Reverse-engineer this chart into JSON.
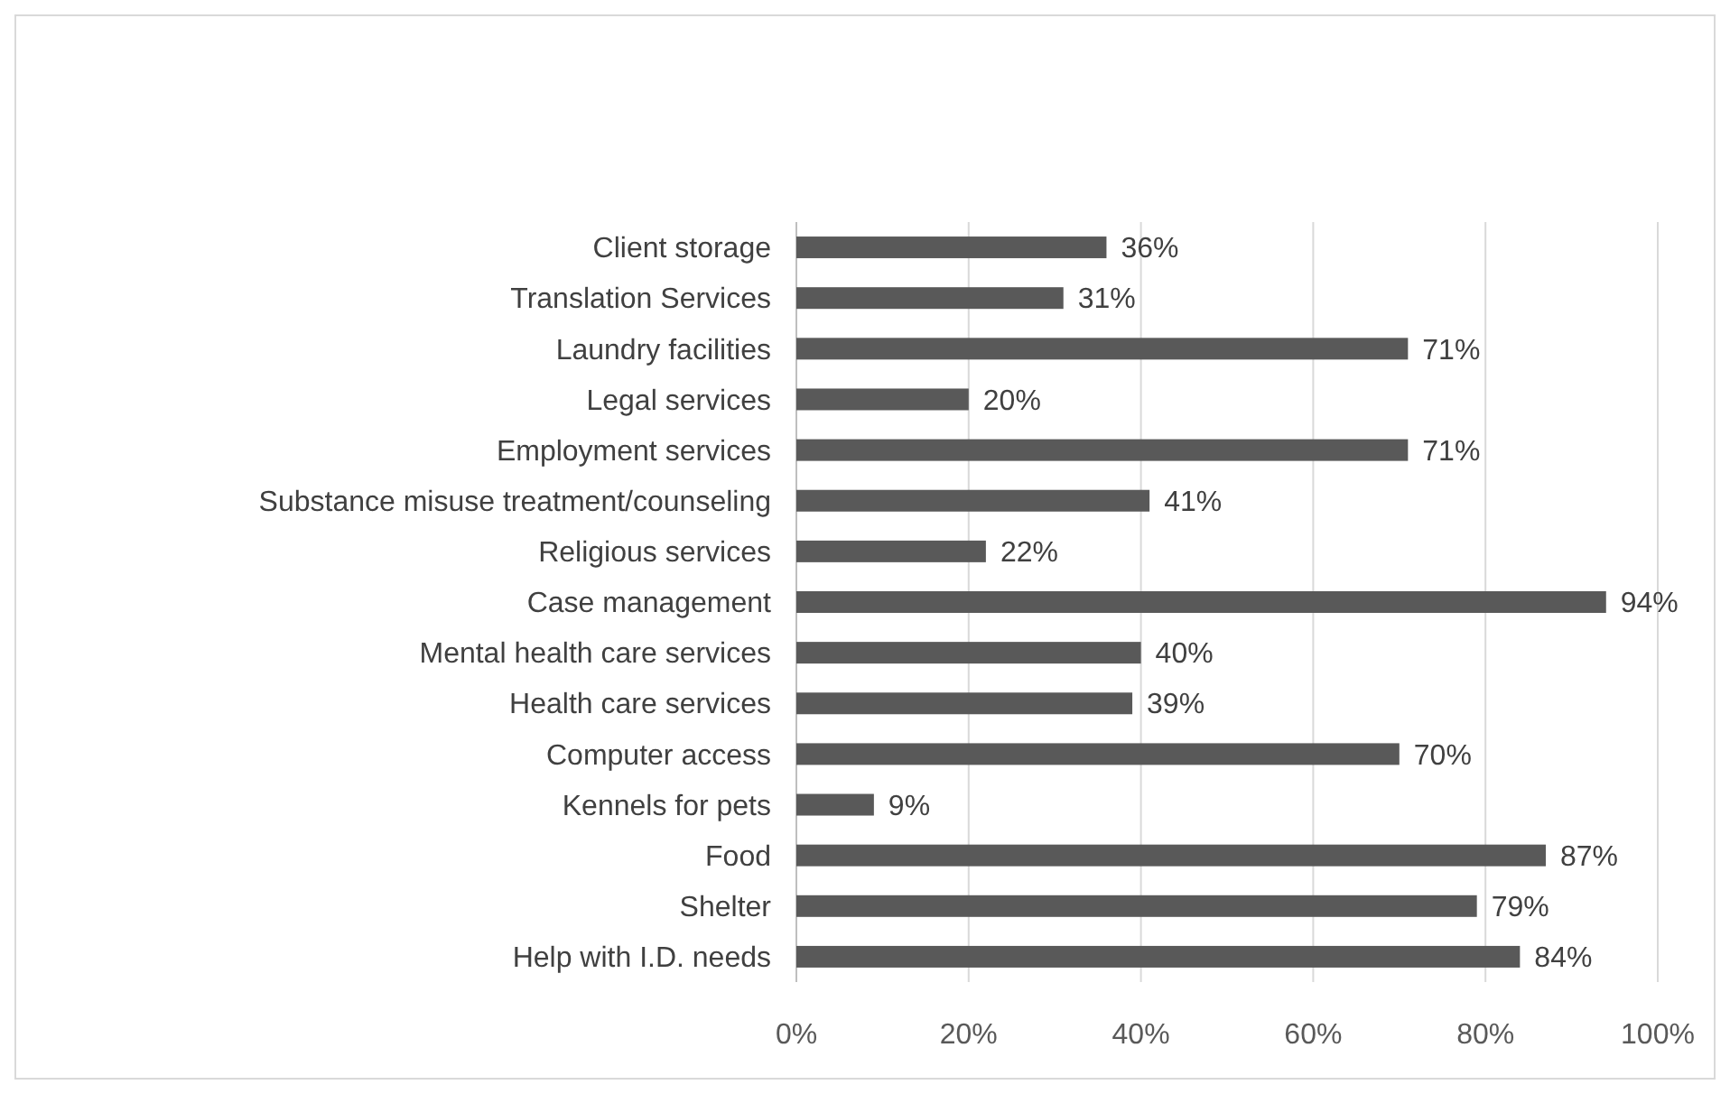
{
  "chart_data": {
    "type": "bar",
    "orientation": "horizontal",
    "categories": [
      "Client storage",
      "Translation Services",
      "Laundry facilities",
      "Legal services",
      "Employment services",
      "Substance misuse treatment/counseling",
      "Religious services",
      "Case management",
      "Mental health care services",
      "Health care services",
      "Computer access",
      "Kennels for pets",
      "Food",
      "Shelter",
      "Help with I.D. needs"
    ],
    "values": [
      36,
      31,
      71,
      20,
      71,
      41,
      22,
      94,
      40,
      39,
      70,
      9,
      87,
      79,
      84
    ],
    "value_labels": [
      "36%",
      "31%",
      "71%",
      "20%",
      "71%",
      "41%",
      "22%",
      "94%",
      "40%",
      "39%",
      "70%",
      "9%",
      "87%",
      "79%",
      "84%"
    ],
    "color": "#595959",
    "xlim": [
      0,
      100
    ],
    "xticks": [
      {
        "value": 0,
        "label": "0%"
      },
      {
        "value": 20,
        "label": "20%"
      },
      {
        "value": 40,
        "label": "40%"
      },
      {
        "value": 60,
        "label": "60%"
      },
      {
        "value": 80,
        "label": "80%"
      },
      {
        "value": 100,
        "label": "100%"
      }
    ],
    "grid": "x"
  }
}
